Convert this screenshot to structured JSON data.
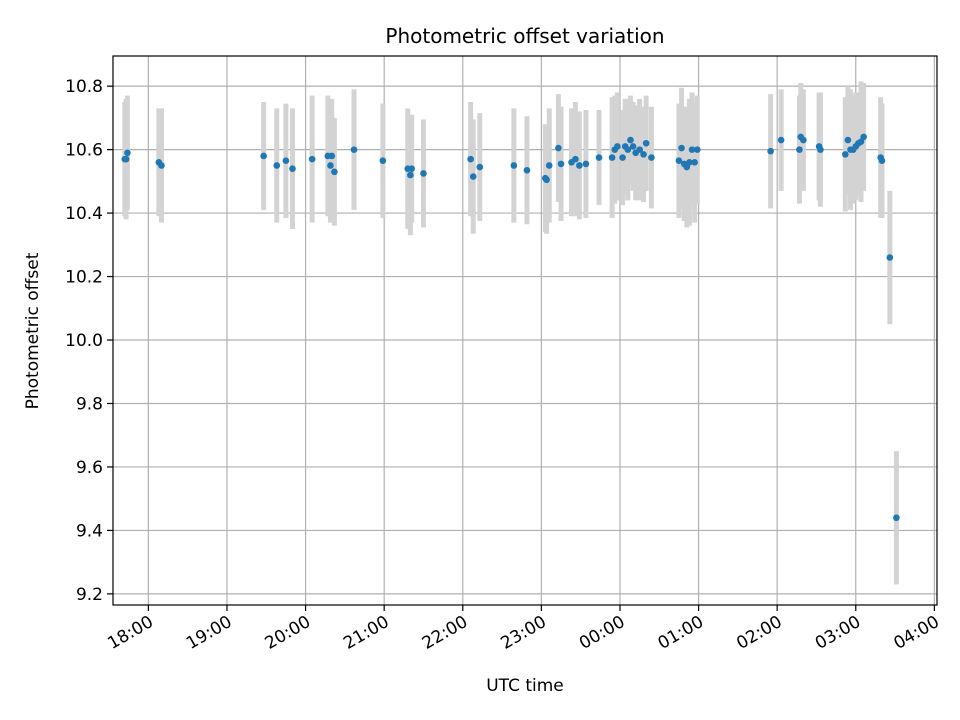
{
  "chart_data": {
    "type": "scatter",
    "title": "Photometric offset variation",
    "xlabel": "UTC time",
    "ylabel": "Photometric offset",
    "grid": true,
    "x_ticks": [
      "18:00",
      "19:00",
      "20:00",
      "21:00",
      "22:00",
      "23:00",
      "00:00",
      "01:00",
      "02:00",
      "03:00",
      "04:00"
    ],
    "y_ticks": [
      "9.2",
      "9.4",
      "9.6",
      "9.8",
      "10.0",
      "10.2",
      "10.4",
      "10.6",
      "10.8"
    ],
    "xlim": [
      "17:33",
      "04:02"
    ],
    "ylim": [
      9.165,
      10.895
    ],
    "colors": {
      "points": "#1f77b4",
      "error_bars": "#d3d3d3",
      "grid": "#b0b0b0"
    },
    "series": [
      {
        "x": [
          "17:42",
          "17:43",
          "17:44",
          "18:08",
          "18:10",
          "19:28",
          "19:38",
          "19:45",
          "19:50",
          "20:05",
          "20:17",
          "20:19",
          "20:20",
          "20:22",
          "20:37",
          "20:59",
          "21:18",
          "21:20",
          "21:21",
          "21:30",
          "22:06",
          "22:08",
          "22:13",
          "22:39",
          "22:49",
          "23:03",
          "23:04",
          "23:06",
          "23:13",
          "23:15",
          "23:23",
          "23:26",
          "23:29",
          "23:34",
          "23:44",
          "23:54",
          "23:56",
          "23:58",
          "24:02",
          "24:04",
          "24:06",
          "24:08",
          "24:10",
          "24:12",
          "24:15",
          "24:18",
          "24:20",
          "24:24",
          "24:45",
          "24:47",
          "24:49",
          "24:51",
          "24:53",
          "24:55",
          "24:57",
          "24:59",
          "25:55",
          "26:03",
          "26:17",
          "26:18",
          "26:20",
          "26:32",
          "26:33",
          "26:52",
          "26:54",
          "26:56",
          "26:58",
          "27:00",
          "27:02",
          "27:04",
          "27:06",
          "27:19",
          "27:20",
          "27:26",
          "27:31"
        ],
        "y": [
          10.57,
          10.57,
          10.59,
          10.56,
          10.55,
          10.58,
          10.55,
          10.565,
          10.54,
          10.57,
          10.58,
          10.55,
          10.58,
          10.53,
          10.6,
          10.565,
          10.54,
          10.52,
          10.54,
          10.525,
          10.57,
          10.515,
          10.545,
          10.55,
          10.535,
          10.51,
          10.505,
          10.55,
          10.605,
          10.555,
          10.56,
          10.57,
          10.55,
          10.555,
          10.575,
          10.575,
          10.6,
          10.61,
          10.575,
          10.61,
          10.6,
          10.63,
          10.61,
          10.59,
          10.6,
          10.585,
          10.62,
          10.575,
          10.565,
          10.605,
          10.555,
          10.545,
          10.56,
          10.6,
          10.56,
          10.6,
          10.595,
          10.63,
          10.6,
          10.64,
          10.63,
          10.61,
          10.6,
          10.585,
          10.63,
          10.6,
          10.6,
          10.61,
          10.62,
          10.625,
          10.64,
          10.575,
          10.565,
          10.26,
          9.44
        ],
        "err": [
          0.18,
          0.19,
          0.18,
          0.17,
          0.18,
          0.17,
          0.18,
          0.18,
          0.19,
          0.2,
          0.19,
          0.18,
          0.18,
          0.17,
          0.19,
          0.18,
          0.19,
          0.19,
          0.17,
          0.17,
          0.18,
          0.18,
          0.17,
          0.18,
          0.17,
          0.17,
          0.17,
          0.18,
          0.17,
          0.18,
          0.17,
          0.18,
          0.17,
          0.17,
          0.15,
          0.19,
          0.17,
          0.17,
          0.15,
          0.15,
          0.16,
          0.14,
          0.14,
          0.15,
          0.16,
          0.15,
          0.15,
          0.16,
          0.18,
          0.19,
          0.18,
          0.19,
          0.2,
          0.18,
          0.19,
          0.17,
          0.18,
          0.16,
          0.17,
          0.17,
          0.16,
          0.17,
          0.18,
          0.18,
          0.17,
          0.19,
          0.17,
          0.17,
          0.16,
          0.19,
          0.17,
          0.19,
          0.18,
          0.21,
          0.21
        ]
      }
    ]
  }
}
